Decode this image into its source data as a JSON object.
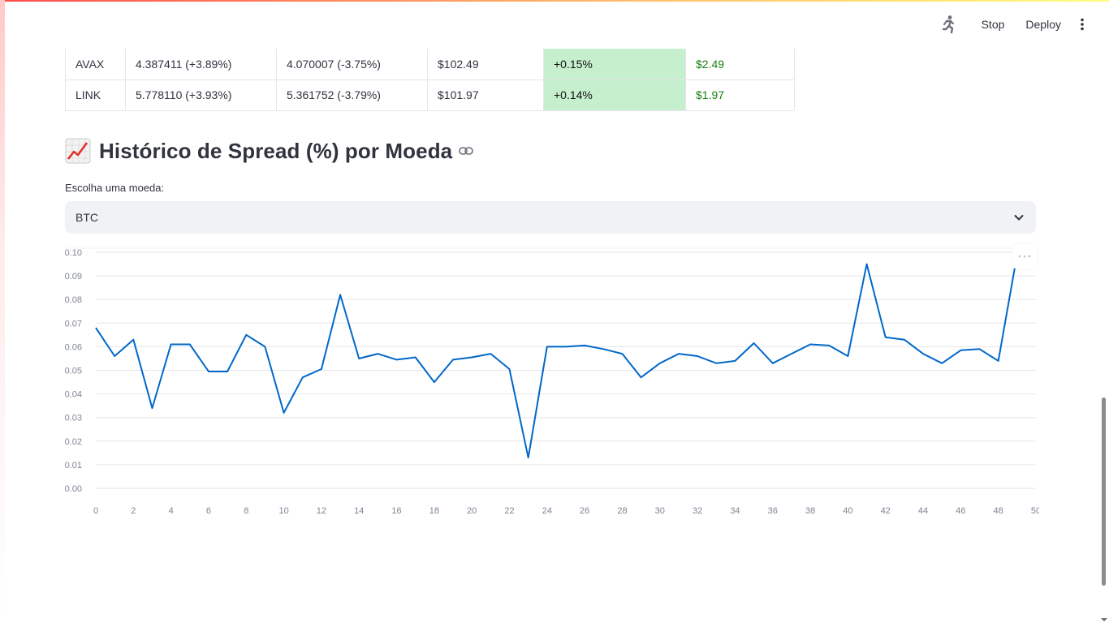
{
  "header": {
    "stop_label": "Stop",
    "deploy_label": "Deploy"
  },
  "table": {
    "rows": [
      {
        "coin": "AVAX",
        "col2": "4.387411 (+3.89%)",
        "col3": "4.070007 (-3.75%)",
        "col4": "$102.49",
        "spread": "+0.15%",
        "profit": "$2.49"
      },
      {
        "coin": "LINK",
        "col2": "5.778110 (+3.93%)",
        "col3": "5.361752 (-3.79%)",
        "col4": "$101.97",
        "spread": "+0.14%",
        "profit": "$1.97"
      }
    ]
  },
  "section": {
    "title": "Histórico de Spread (%) por Moeda",
    "emoji_icon": "chart-increasing-icon"
  },
  "select": {
    "label": "Escolha uma moeda:",
    "value": "BTC"
  },
  "colors": {
    "line": "#0068c9",
    "highlight": "#c6efce",
    "positive_text": "#1a7f14"
  },
  "chart_data": {
    "type": "line",
    "x": [
      0,
      1,
      2,
      3,
      4,
      5,
      6,
      7,
      8,
      9,
      10,
      11,
      12,
      13,
      14,
      15,
      16,
      17,
      18,
      19,
      20,
      21,
      22,
      23,
      24,
      25,
      26,
      27,
      28,
      29,
      30,
      31,
      32,
      33,
      34,
      35,
      36,
      37,
      38,
      39,
      40,
      41,
      42,
      43,
      44,
      45,
      46,
      47,
      48,
      49
    ],
    "series": [
      {
        "values": [
          0.068,
          0.056,
          0.063,
          0.034,
          0.061,
          0.061,
          0.0495,
          0.0495,
          0.065,
          0.06,
          0.032,
          0.047,
          0.0505,
          0.082,
          0.055,
          0.057,
          0.0545,
          0.0555,
          0.045,
          0.0545,
          0.0555,
          0.057,
          0.0505,
          0.013,
          0.06,
          0.06,
          0.0605,
          0.059,
          0.057,
          0.047,
          0.053,
          0.057,
          0.056,
          0.053,
          0.054,
          0.0615,
          0.053,
          0.057,
          0.061,
          0.0605,
          0.056,
          0.095,
          0.064,
          0.063,
          0.057,
          0.053,
          0.0585,
          0.059,
          0.054,
          0.099
        ]
      }
    ],
    "xlabel": "",
    "ylabel": "",
    "xlim": [
      0,
      50
    ],
    "ylim": [
      0,
      0.1
    ],
    "x_ticks": [
      "0",
      "2",
      "4",
      "6",
      "8",
      "10",
      "12",
      "14",
      "16",
      "18",
      "20",
      "22",
      "24",
      "26",
      "28",
      "30",
      "32",
      "34",
      "36",
      "38",
      "40",
      "42",
      "44",
      "46",
      "48",
      "50"
    ],
    "y_ticks": [
      "0.00",
      "0.01",
      "0.02",
      "0.03",
      "0.04",
      "0.05",
      "0.06",
      "0.07",
      "0.08",
      "0.09",
      "0.10"
    ],
    "grid": true
  }
}
